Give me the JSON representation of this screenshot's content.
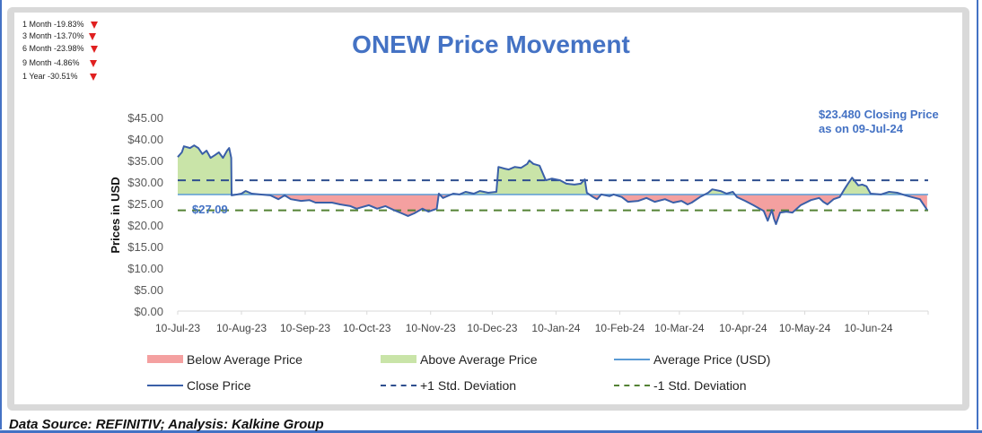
{
  "performance": [
    {
      "label": "1 Month -19.83%",
      "direction": "down"
    },
    {
      "label": "3 Month -13.70%",
      "direction": "down"
    },
    {
      "label": "6 Month -23.98%",
      "direction": "down"
    },
    {
      "label": "9 Month -4.86%",
      "direction": "down"
    },
    {
      "label": "1 Year -30.51%",
      "direction": "down"
    }
  ],
  "closing_note": {
    "line1": "$23.480 Closing Price",
    "line2": "as on 09-Jul-24"
  },
  "average_label": "$27.09",
  "footer": "Data Source: REFINITIV; Analysis: Kalkine Group",
  "colors": {
    "close": "#3a5fa8",
    "average": "#5b9bd5",
    "plus_sd": "#2f4f8f",
    "minus_sd": "#548235",
    "above": "#c9e4a8",
    "below": "#f4a0a0",
    "title": "#4472c4",
    "frame": "#d9d9d9"
  },
  "chart_data": {
    "type": "area",
    "title": "ONEW Price Movement",
    "xlabel": "",
    "ylabel": "Prices in USD",
    "ylim": [
      0,
      45
    ],
    "yticks": [
      "$0.00",
      "$5.00",
      "$10.00",
      "$15.00",
      "$20.00",
      "$25.00",
      "$30.00",
      "$35.00",
      "$40.00",
      "$45.00"
    ],
    "ytick_values": [
      0,
      5,
      10,
      15,
      20,
      25,
      30,
      35,
      40,
      45
    ],
    "xlim_days": [
      0,
      365
    ],
    "xticks": [
      "10-Jul-23",
      "10-Aug-23",
      "10-Sep-23",
      "10-Oct-23",
      "10-Nov-23",
      "10-Dec-23",
      "10-Jan-24",
      "10-Feb-24",
      "10-Mar-24",
      "10-Apr-24",
      "10-May-24",
      "10-Jun-24"
    ],
    "xtick_days": [
      0,
      31,
      62,
      92,
      123,
      153,
      184,
      215,
      244,
      275,
      305,
      336
    ],
    "x_note": "x = days since 10-Jul-23",
    "average": 27.09,
    "plus_1sd": 30.4,
    "minus_1sd": 23.4,
    "legend": [
      {
        "label": "Below Average Price",
        "kind": "area-below"
      },
      {
        "label": "Above Average Price",
        "kind": "area-above"
      },
      {
        "label": "Average Price (USD)",
        "kind": "line-average"
      },
      {
        "label": "Close Price",
        "kind": "line-close"
      },
      {
        "label": "+1 Std. Deviation",
        "kind": "dash-plus"
      },
      {
        "label": "-1 Std. Deviation",
        "kind": "dash-minus"
      }
    ],
    "series": [
      {
        "name": "Close Price",
        "x": [
          0,
          2,
          3,
          6,
          8,
          10,
          12,
          14,
          16,
          18,
          20,
          22,
          24,
          25,
          26,
          26.2,
          29,
          31,
          33,
          36,
          40,
          45,
          49,
          52,
          55,
          60,
          64,
          67,
          71,
          75,
          79,
          84,
          87,
          90,
          93,
          97,
          101,
          105,
          109,
          112,
          115,
          119,
          122,
          126,
          127,
          129,
          134,
          137,
          140,
          144,
          147,
          151,
          155,
          156,
          159,
          161,
          164,
          167,
          170,
          171,
          173,
          176,
          179,
          182,
          186,
          189,
          193,
          196,
          198,
          199,
          202,
          204,
          206,
          210,
          212,
          216,
          219,
          224,
          228,
          232,
          237,
          241,
          245,
          248,
          250,
          254,
          258,
          260,
          264,
          267,
          270,
          272,
          276,
          280,
          283,
          285,
          287,
          289,
          290,
          291,
          293,
          296,
          299,
          303,
          308,
          312,
          314,
          316,
          319,
          322,
          324,
          326,
          328,
          331,
          333,
          335,
          337,
          342,
          346,
          350,
          354,
          357,
          361,
          364.5
        ],
        "y": [
          35.8,
          36.9,
          38.3,
          37.9,
          38.5,
          37.9,
          36.5,
          37.3,
          35.6,
          36.2,
          36.9,
          35.6,
          37.3,
          37.9,
          35.6,
          26.9,
          27.1,
          27.3,
          27.9,
          27.3,
          27.1,
          26.9,
          26.0,
          26.9,
          26.0,
          25.6,
          25.8,
          25.2,
          25.2,
          25.2,
          24.8,
          24.4,
          23.8,
          24.2,
          24.6,
          23.8,
          24.4,
          23.5,
          22.7,
          22.1,
          22.7,
          23.8,
          23.1,
          23.8,
          27.3,
          26.3,
          27.3,
          27.1,
          27.7,
          27.3,
          27.9,
          27.5,
          27.7,
          33.5,
          33.1,
          32.9,
          33.5,
          33.3,
          34.2,
          35.0,
          34.2,
          33.8,
          30.4,
          30.8,
          30.4,
          29.6,
          29.4,
          29.6,
          30.6,
          27.5,
          26.5,
          26.0,
          27.1,
          26.7,
          27.1,
          26.5,
          25.4,
          25.6,
          26.3,
          25.4,
          26.0,
          25.2,
          25.6,
          24.8,
          25.2,
          26.5,
          27.5,
          28.3,
          27.9,
          27.3,
          27.7,
          26.5,
          25.6,
          24.6,
          23.8,
          23.3,
          21.0,
          23.5,
          21.5,
          20.2,
          22.9,
          23.1,
          22.9,
          24.6,
          25.8,
          26.3,
          25.4,
          24.8,
          26.0,
          26.5,
          28.1,
          29.6,
          31.0,
          29.2,
          29.4,
          29.0,
          27.3,
          27.1,
          27.7,
          27.5,
          26.9,
          26.5,
          26.0,
          23.5
        ]
      }
    ]
  }
}
